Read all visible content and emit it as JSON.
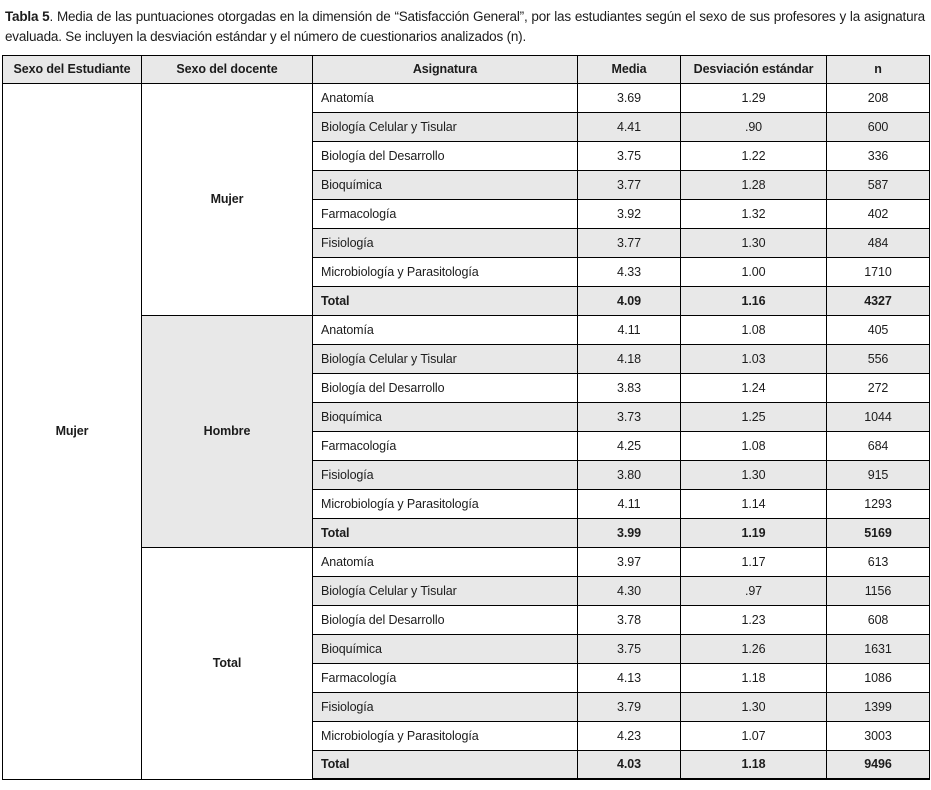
{
  "colors": {
    "row_alt_bg": "#e8e8e8",
    "header_bg": "#e8e8e8",
    "border": "#000000",
    "text": "#1c1c1c"
  },
  "caption": {
    "label": "Tabla 5",
    "text": ". Media de las puntuaciones otorgadas en la dimensión de “Satisfacción General”, por las estudiantes según el sexo de sus profesores y la asignatura evaluada. Se incluyen la desviación estándar y el número de cuestionarios analizados (n)."
  },
  "table": {
    "headers": {
      "student_sex": "Sexo del Estudiante",
      "docente_sex": "Sexo del docente",
      "asignatura": "Asignatura",
      "media": "Media",
      "de": "Desviación estándar",
      "n": "n"
    },
    "student_sex": "Mujer",
    "sections": [
      {
        "docente": "Mujer",
        "rows": [
          {
            "asignatura": "Anatomía",
            "media": "3.69",
            "de": "1.29",
            "n": "208"
          },
          {
            "asignatura": "Biología Celular y Tisular",
            "media": "4.41",
            "de": ".90",
            "n": "600"
          },
          {
            "asignatura": "Biología del Desarrollo",
            "media": "3.75",
            "de": "1.22",
            "n": "336"
          },
          {
            "asignatura": "Bioquímica",
            "media": "3.77",
            "de": "1.28",
            "n": "587"
          },
          {
            "asignatura": "Farmacología",
            "media": "3.92",
            "de": "1.32",
            "n": "402"
          },
          {
            "asignatura": "Fisiología",
            "media": "3.77",
            "de": "1.30",
            "n": "484"
          },
          {
            "asignatura": "Microbiología y Parasitología",
            "media": "4.33",
            "de": "1.00",
            "n": "1710"
          },
          {
            "asignatura": "Total",
            "media": "4.09",
            "de": "1.16",
            "n": "4327"
          }
        ]
      },
      {
        "docente": "Hombre",
        "rows": [
          {
            "asignatura": "Anatomía",
            "media": "4.11",
            "de": "1.08",
            "n": "405"
          },
          {
            "asignatura": "Biología Celular y Tisular",
            "media": "4.18",
            "de": "1.03",
            "n": "556"
          },
          {
            "asignatura": "Biología del Desarrollo",
            "media": "3.83",
            "de": "1.24",
            "n": "272"
          },
          {
            "asignatura": "Bioquímica",
            "media": "3.73",
            "de": "1.25",
            "n": "1044"
          },
          {
            "asignatura": "Farmacología",
            "media": "4.25",
            "de": "1.08",
            "n": "684"
          },
          {
            "asignatura": "Fisiología",
            "media": "3.80",
            "de": "1.30",
            "n": "915"
          },
          {
            "asignatura": "Microbiología y Parasitología",
            "media": "4.11",
            "de": "1.14",
            "n": "1293"
          },
          {
            "asignatura": "Total",
            "media": "3.99",
            "de": "1.19",
            "n": "5169"
          }
        ]
      },
      {
        "docente": "Total",
        "rows": [
          {
            "asignatura": "Anatomía",
            "media": "3.97",
            "de": "1.17",
            "n": "613"
          },
          {
            "asignatura": "Biología Celular y Tisular",
            "media": "4.30",
            "de": ".97",
            "n": "1156"
          },
          {
            "asignatura": "Biología del Desarrollo",
            "media": "3.78",
            "de": "1.23",
            "n": "608"
          },
          {
            "asignatura": "Bioquímica",
            "media": "3.75",
            "de": "1.26",
            "n": "1631"
          },
          {
            "asignatura": "Farmacología",
            "media": "4.13",
            "de": "1.18",
            "n": "1086"
          },
          {
            "asignatura": "Fisiología",
            "media": "3.79",
            "de": "1.30",
            "n": "1399"
          },
          {
            "asignatura": "Microbiología y Parasitología",
            "media": "4.23",
            "de": "1.07",
            "n": "3003"
          },
          {
            "asignatura": "Total",
            "media": "4.03",
            "de": "1.18",
            "n": "9496"
          }
        ]
      }
    ]
  }
}
